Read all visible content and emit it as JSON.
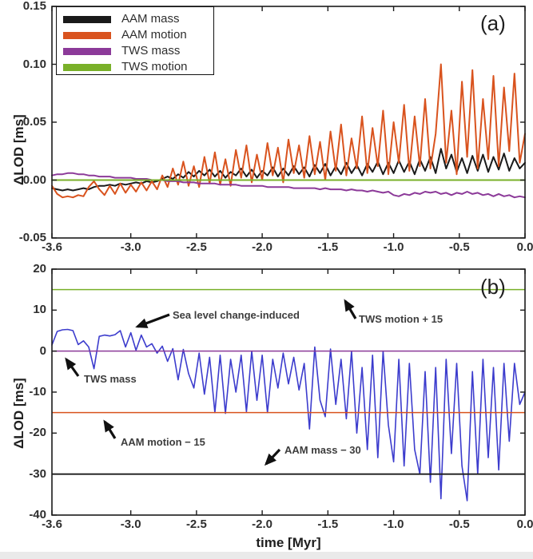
{
  "figure": {
    "panel_a_label": "(a)",
    "panel_b_label": "(b)",
    "ylabel": "ΔLOD [ms]",
    "xlabel": "time [Myr]"
  },
  "legend": {
    "items": [
      {
        "label": "AAM mass",
        "color": "#1a1a1a"
      },
      {
        "label": "AAM motion",
        "color": "#d9531e"
      },
      {
        "label": "TWS mass",
        "color": "#8c3a99"
      },
      {
        "label": "TWS motion",
        "color": "#79b029"
      }
    ]
  },
  "chart_data": [
    {
      "id": "a",
      "type": "line",
      "xlim": [
        -3.6,
        0.0
      ],
      "ylim": [
        -0.05,
        0.15
      ],
      "xticks": [
        -3.6,
        -3.0,
        -2.5,
        -2.0,
        -1.5,
        -1.0,
        -0.5,
        0.0
      ],
      "xtick_labels": [
        "-3.6",
        "-3.0",
        "-2.5",
        "-2.0",
        "-1.5",
        "-1.0",
        "-0.5",
        "0.0"
      ],
      "yticks": [
        0.15,
        0.1,
        0.05,
        0.0,
        -0.05
      ],
      "ytick_labels": [
        "0.15",
        "0.10",
        "0.05",
        "0.00",
        "-0.05"
      ],
      "x_start": -3.6,
      "x_step": 0.04,
      "grid": false,
      "legend_position": "top-left",
      "series": [
        {
          "name": "AAM mass",
          "color": "#1a1a1a",
          "width": 2,
          "values": [
            -0.007,
            -0.008,
            -0.009,
            -0.008,
            -0.009,
            -0.008,
            -0.007,
            -0.008,
            -0.006,
            -0.005,
            -0.005,
            -0.004,
            -0.005,
            -0.003,
            -0.004,
            -0.003,
            -0.002,
            -0.003,
            -0.001,
            -0.002,
            -0.001,
            0.001,
            0.003,
            0.001,
            0.005,
            0.002,
            0.007,
            0.003,
            0.008,
            0.004,
            0.009,
            0.003,
            0.008,
            0.002,
            0.007,
            0.004,
            0.01,
            0.003,
            0.009,
            0.002,
            0.008,
            0.004,
            0.011,
            0.003,
            0.01,
            0.004,
            0.012,
            0.005,
            0.011,
            0.003,
            0.013,
            0.006,
            0.014,
            0.004,
            0.012,
            0.005,
            0.015,
            0.006,
            0.013,
            0.004,
            0.014,
            0.007,
            0.016,
            0.005,
            0.015,
            0.006,
            0.017,
            0.007,
            0.016,
            0.005,
            0.018,
            0.008,
            0.02,
            0.006,
            0.027,
            0.01,
            0.022,
            0.007,
            0.019,
            0.006,
            0.021,
            0.008,
            0.022,
            0.007,
            0.02,
            0.009,
            0.023,
            0.008,
            0.019,
            0.01,
            0.015
          ]
        },
        {
          "name": "AAM motion",
          "color": "#d9531e",
          "width": 2,
          "values": [
            -0.005,
            -0.012,
            -0.015,
            -0.014,
            -0.015,
            -0.013,
            -0.014,
            -0.006,
            -0.001,
            -0.008,
            -0.013,
            -0.005,
            -0.012,
            -0.003,
            -0.011,
            -0.004,
            -0.01,
            -0.002,
            -0.009,
            -0.001,
            -0.008,
            0.004,
            -0.006,
            0.01,
            -0.004,
            0.016,
            -0.005,
            0.012,
            -0.006,
            0.02,
            -0.003,
            0.024,
            -0.004,
            0.018,
            -0.005,
            0.026,
            0.002,
            0.03,
            -0.002,
            0.022,
            0.0,
            0.032,
            0.004,
            0.028,
            -0.002,
            0.035,
            0.006,
            0.03,
            0.002,
            0.038,
            0.005,
            0.033,
            0.0,
            0.042,
            0.008,
            0.048,
            0.004,
            0.036,
            0.01,
            0.055,
            0.006,
            0.045,
            0.012,
            0.06,
            0.005,
            0.05,
            0.015,
            0.065,
            0.008,
            0.055,
            0.012,
            0.07,
            0.01,
            0.04,
            0.1,
            0.015,
            0.06,
            0.005,
            0.085,
            0.02,
            0.095,
            0.01,
            0.07,
            0.018,
            0.09,
            0.012,
            0.08,
            0.025,
            0.092,
            0.015,
            0.04
          ]
        },
        {
          "name": "TWS mass",
          "color": "#8c3a99",
          "width": 2,
          "values": [
            0.004,
            0.005,
            0.005,
            0.006,
            0.006,
            0.005,
            0.005,
            0.004,
            0.004,
            0.003,
            0.003,
            0.003,
            0.002,
            0.002,
            0.002,
            0.002,
            0.001,
            0.001,
            0.001,
            0.0,
            0.0,
            0.0,
            -0.001,
            -0.001,
            -0.001,
            -0.002,
            -0.002,
            -0.002,
            -0.003,
            -0.003,
            -0.003,
            -0.003,
            -0.004,
            -0.004,
            -0.004,
            -0.004,
            -0.005,
            -0.005,
            -0.005,
            -0.005,
            -0.005,
            -0.006,
            -0.006,
            -0.006,
            -0.006,
            -0.006,
            -0.007,
            -0.007,
            -0.007,
            -0.007,
            -0.007,
            -0.008,
            -0.007,
            -0.008,
            -0.008,
            -0.008,
            -0.009,
            -0.008,
            -0.009,
            -0.009,
            -0.01,
            -0.009,
            -0.01,
            -0.011,
            -0.01,
            -0.013,
            -0.014,
            -0.012,
            -0.013,
            -0.011,
            -0.012,
            -0.01,
            -0.011,
            -0.01,
            -0.012,
            -0.011,
            -0.013,
            -0.011,
            -0.012,
            -0.01,
            -0.012,
            -0.011,
            -0.013,
            -0.012,
            -0.014,
            -0.012,
            -0.014,
            -0.013,
            -0.015,
            -0.014,
            -0.015
          ]
        },
        {
          "name": "TWS motion",
          "color": "#79b029",
          "width": 2,
          "constant": 0.0
        }
      ]
    },
    {
      "id": "b",
      "type": "line",
      "xlim": [
        -3.6,
        0.0
      ],
      "ylim": [
        -40,
        20
      ],
      "xticks": [
        -3.6,
        -3.0,
        -2.5,
        -2.0,
        -1.5,
        -1.0,
        -0.5,
        0.0
      ],
      "xtick_labels": [
        "-3.6",
        "-3.0",
        "-2.5",
        "-2.0",
        "-1.5",
        "-1.0",
        "-0.5",
        "0.0"
      ],
      "yticks": [
        20,
        10,
        0,
        -10,
        -20,
        -30,
        -40
      ],
      "ytick_labels": [
        "20",
        "10",
        "0",
        "-10",
        "-20",
        "-30",
        "-40"
      ],
      "x_start": -3.6,
      "x_step": 0.04,
      "grid": false,
      "series": [
        {
          "name": "Sea level change-induced",
          "color": "#3c3ccd",
          "width": 1.6,
          "values": [
            1.5,
            4.8,
            5.2,
            5.3,
            5.0,
            1.6,
            2.5,
            1.0,
            -4.3,
            3.6,
            3.9,
            3.7,
            4.0,
            5.0,
            1.0,
            4.5,
            0.2,
            3.9,
            1.0,
            1.8,
            -0.5,
            1.2,
            -2.5,
            0.6,
            -7.0,
            0.4,
            -5.5,
            -9.0,
            -0.5,
            -10.5,
            -1.5,
            -15.0,
            -1.0,
            -15.2,
            -2.0,
            -10.0,
            -1.0,
            -14.8,
            0.0,
            -12.0,
            -1.0,
            -15.0,
            -2.0,
            -9.0,
            -0.5,
            -8.0,
            -1.5,
            -9.5,
            -3.0,
            -19.0,
            1.0,
            -12.0,
            -16.0,
            0.5,
            -13.0,
            -2.0,
            -16.5,
            0.0,
            -20.0,
            -4.0,
            -24.0,
            -1.0,
            -26.0,
            0.0,
            -18.0,
            -27.0,
            -2.0,
            -28.0,
            -3.0,
            -24.0,
            -30.0,
            -5.0,
            -32.0,
            -4.0,
            -36.0,
            -2.0,
            -25.0,
            -3.0,
            -28.0,
            -36.5,
            -5.0,
            -30.0,
            -2.0,
            -26.0,
            -4.0,
            -29.0,
            -3.0,
            -22.0,
            -3.0,
            -13.0,
            -10.0
          ]
        }
      ],
      "ref_lines": [
        {
          "label": "TWS motion + 15",
          "value": 15,
          "color": "#79b029",
          "width": 1.5
        },
        {
          "label": "TWS mass",
          "value": 0,
          "color": "#8c3a99",
          "width": 1.5
        },
        {
          "label": "AAM motion − 15",
          "value": -15,
          "color": "#d9531e",
          "width": 1.5
        },
        {
          "label": "AAM mass − 30",
          "value": -30,
          "color": "#1a1a1a",
          "width": 1.8
        }
      ],
      "annotations": [
        {
          "text": "Sea level change-induced"
        },
        {
          "text": "TWS motion + 15"
        },
        {
          "text": "TWS mass"
        },
        {
          "text": "AAM motion − 15"
        },
        {
          "text": "AAM mass − 30"
        }
      ]
    }
  ]
}
